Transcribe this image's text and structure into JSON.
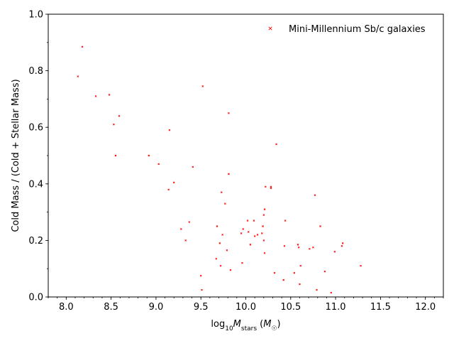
{
  "chart_data": {
    "type": "scatter",
    "title": "",
    "xlabel": "log10 M_stars (M_sun)",
    "ylabel": "Cold Mass / (Cold + Stellar Mass)",
    "xlim": [
      7.8,
      12.2
    ],
    "ylim": [
      0.0,
      1.0
    ],
    "x_ticks": [
      "8.0",
      "8.5",
      "9.0",
      "9.5",
      "10.0",
      "10.5",
      "11.0",
      "11.5",
      "12.0"
    ],
    "y_ticks": [
      "0.0",
      "0.2",
      "0.4",
      "0.6",
      "0.8",
      "1.0"
    ],
    "x_minor_step": 0.1,
    "y_minor_step": 0.1,
    "grid": false,
    "legend": {
      "position": "upper right",
      "marker": "x",
      "color": "#ff0000"
    },
    "series": [
      {
        "name": "Mini-Millennium Sb/c galaxies",
        "color": "#ff0000",
        "marker": "x",
        "points": [
          [
            8.13,
            0.78
          ],
          [
            8.18,
            0.885
          ],
          [
            8.33,
            0.71
          ],
          [
            8.48,
            0.715
          ],
          [
            8.53,
            0.61
          ],
          [
            8.55,
            0.5
          ],
          [
            8.59,
            0.64
          ],
          [
            8.92,
            0.5
          ],
          [
            9.03,
            0.47
          ],
          [
            9.14,
            0.38
          ],
          [
            9.15,
            0.59
          ],
          [
            9.2,
            0.405
          ],
          [
            9.28,
            0.24
          ],
          [
            9.33,
            0.2
          ],
          [
            9.37,
            0.265
          ],
          [
            9.41,
            0.46
          ],
          [
            9.5,
            0.075
          ],
          [
            9.51,
            0.025
          ],
          [
            9.52,
            0.745
          ],
          [
            9.67,
            0.135
          ],
          [
            9.68,
            0.25
          ],
          [
            9.71,
            0.19
          ],
          [
            9.72,
            0.11
          ],
          [
            9.73,
            0.37
          ],
          [
            9.74,
            0.22
          ],
          [
            9.77,
            0.33
          ],
          [
            9.79,
            0.165
          ],
          [
            9.81,
            0.65
          ],
          [
            9.81,
            0.435
          ],
          [
            9.83,
            0.095
          ],
          [
            9.95,
            0.225
          ],
          [
            9.96,
            0.12
          ],
          [
            9.97,
            0.24
          ],
          [
            10.02,
            0.27
          ],
          [
            10.03,
            0.23
          ],
          [
            10.05,
            0.185
          ],
          [
            10.09,
            0.27
          ],
          [
            10.1,
            0.215
          ],
          [
            10.13,
            0.22
          ],
          [
            10.18,
            0.225
          ],
          [
            10.19,
            0.25
          ],
          [
            10.2,
            0.29
          ],
          [
            10.2,
            0.2
          ],
          [
            10.21,
            0.31
          ],
          [
            10.21,
            0.155
          ],
          [
            10.22,
            0.39
          ],
          [
            10.28,
            0.385
          ],
          [
            10.28,
            0.39
          ],
          [
            10.32,
            0.085
          ],
          [
            10.34,
            0.54
          ],
          [
            10.42,
            0.06
          ],
          [
            10.43,
            0.18
          ],
          [
            10.44,
            0.27
          ],
          [
            10.54,
            0.085
          ],
          [
            10.58,
            0.185
          ],
          [
            10.59,
            0.175
          ],
          [
            10.6,
            0.045
          ],
          [
            10.61,
            0.11
          ],
          [
            10.71,
            0.17
          ],
          [
            10.75,
            0.175
          ],
          [
            10.77,
            0.36
          ],
          [
            10.79,
            0.025
          ],
          [
            10.83,
            0.25
          ],
          [
            10.88,
            0.09
          ],
          [
            10.95,
            0.015
          ],
          [
            10.99,
            0.16
          ],
          [
            11.07,
            0.18
          ],
          [
            11.08,
            0.19
          ],
          [
            11.28,
            0.11
          ]
        ]
      }
    ]
  }
}
